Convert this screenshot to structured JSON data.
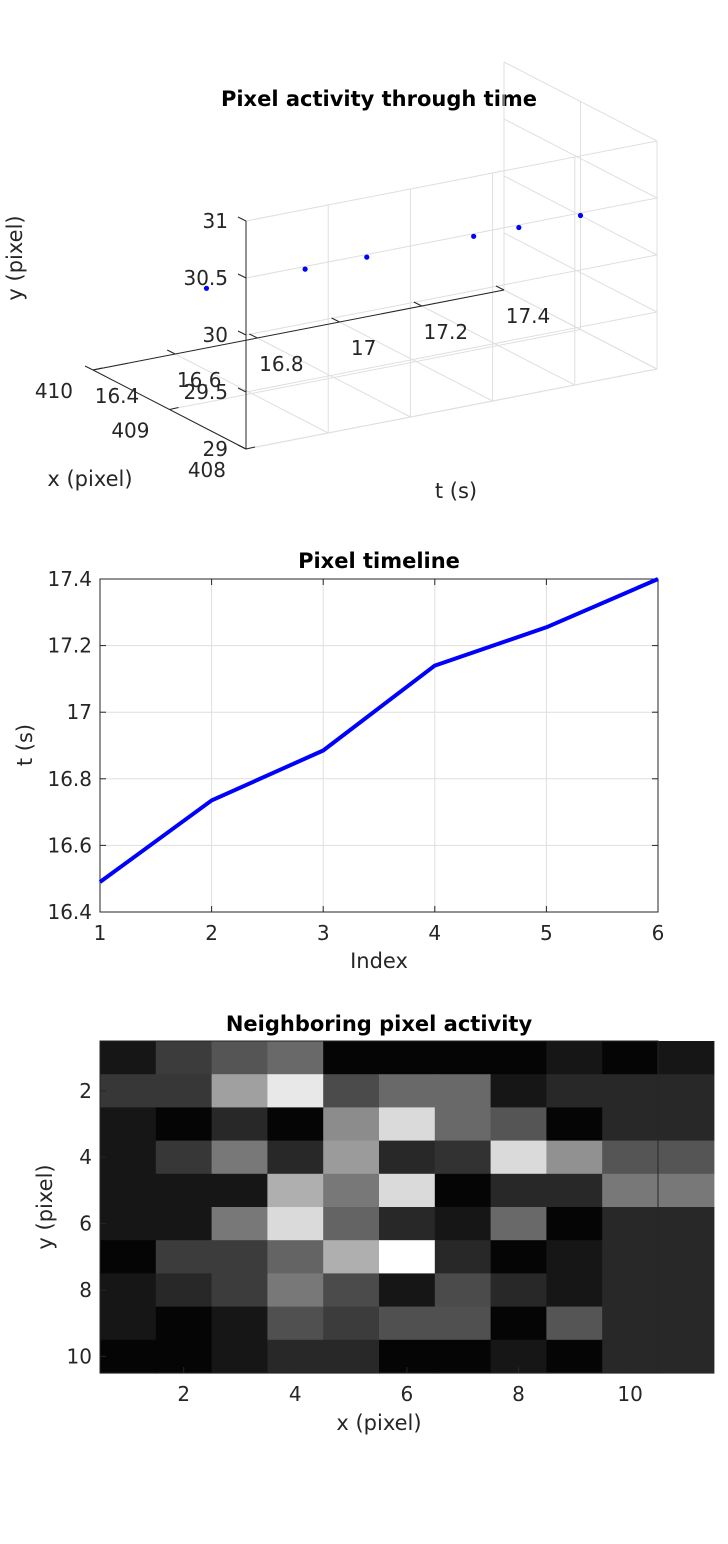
{
  "chart_data": [
    {
      "type": "scatter3d",
      "title": "Pixel activity through time",
      "xlabel": "x (pixel)",
      "ylabel": "y (pixel)",
      "zlabel": "t (s)",
      "t_ticks": [
        "16.4",
        "16.6",
        "16.8",
        "17",
        "17.2",
        "17.4"
      ],
      "x_ticks": [
        "408",
        "409",
        "410"
      ],
      "y_ticks": [
        "29",
        "29.5",
        "30",
        "30.5",
        "31"
      ],
      "tlim": [
        16.4,
        17.4
      ],
      "xlim": [
        408,
        410
      ],
      "ylim": [
        29,
        31
      ],
      "color": "#0000ff",
      "grid": true,
      "points": [
        {
          "t": 16.49,
          "x": 409,
          "y": 30
        },
        {
          "t": 16.73,
          "x": 409,
          "y": 30
        },
        {
          "t": 16.88,
          "x": 409,
          "y": 30
        },
        {
          "t": 17.14,
          "x": 409,
          "y": 30
        },
        {
          "t": 17.25,
          "x": 409,
          "y": 30
        },
        {
          "t": 17.4,
          "x": 409,
          "y": 30
        }
      ]
    },
    {
      "type": "line",
      "title": "Pixel timeline",
      "xlabel": "Index",
      "ylabel": "t (s)",
      "x": [
        1,
        2,
        3,
        4,
        5,
        6
      ],
      "values": [
        16.49,
        16.735,
        16.885,
        17.14,
        17.255,
        17.4
      ],
      "x_ticks": [
        "1",
        "2",
        "3",
        "4",
        "5",
        "6"
      ],
      "y_ticks": [
        "16.4",
        "16.6",
        "16.8",
        "17",
        "17.2",
        "17.4"
      ],
      "xlim": [
        1,
        6
      ],
      "ylim": [
        16.4,
        17.4
      ],
      "color": "#0000ff",
      "grid": true
    },
    {
      "type": "heatmap",
      "title": "Neighboring pixel activity",
      "xlabel": "x (pixel)",
      "ylabel": "y (pixel)",
      "x_ticks": [
        "2",
        "4",
        "6",
        "8",
        "10"
      ],
      "y_ticks": [
        "2",
        "4",
        "6",
        "8",
        "10"
      ],
      "colormap": "gray",
      "values": [
        [
          22,
          60,
          85,
          105,
          5,
          5,
          5,
          5,
          22,
          5,
          22
        ],
        [
          55,
          55,
          160,
          232,
          75,
          105,
          105,
          22,
          40,
          40,
          40
        ],
        [
          22,
          5,
          40,
          5,
          140,
          218,
          105,
          85,
          5,
          40,
          40
        ],
        [
          22,
          55,
          120,
          40,
          155,
          40,
          50,
          218,
          145,
          85,
          85
        ],
        [
          22,
          22,
          22,
          175,
          120,
          218,
          5,
          40,
          40,
          120,
          120
        ],
        [
          22,
          22,
          120,
          218,
          100,
          40,
          22,
          105,
          5,
          40,
          40
        ],
        [
          5,
          60,
          60,
          100,
          175,
          255,
          40,
          5,
          22,
          40,
          40
        ],
        [
          22,
          40,
          60,
          120,
          75,
          22,
          75,
          40,
          22,
          40,
          40
        ],
        [
          22,
          5,
          22,
          80,
          60,
          80,
          80,
          5,
          85,
          40,
          40
        ],
        [
          5,
          5,
          22,
          40,
          40,
          5,
          5,
          22,
          5,
          40,
          40
        ]
      ]
    }
  ]
}
